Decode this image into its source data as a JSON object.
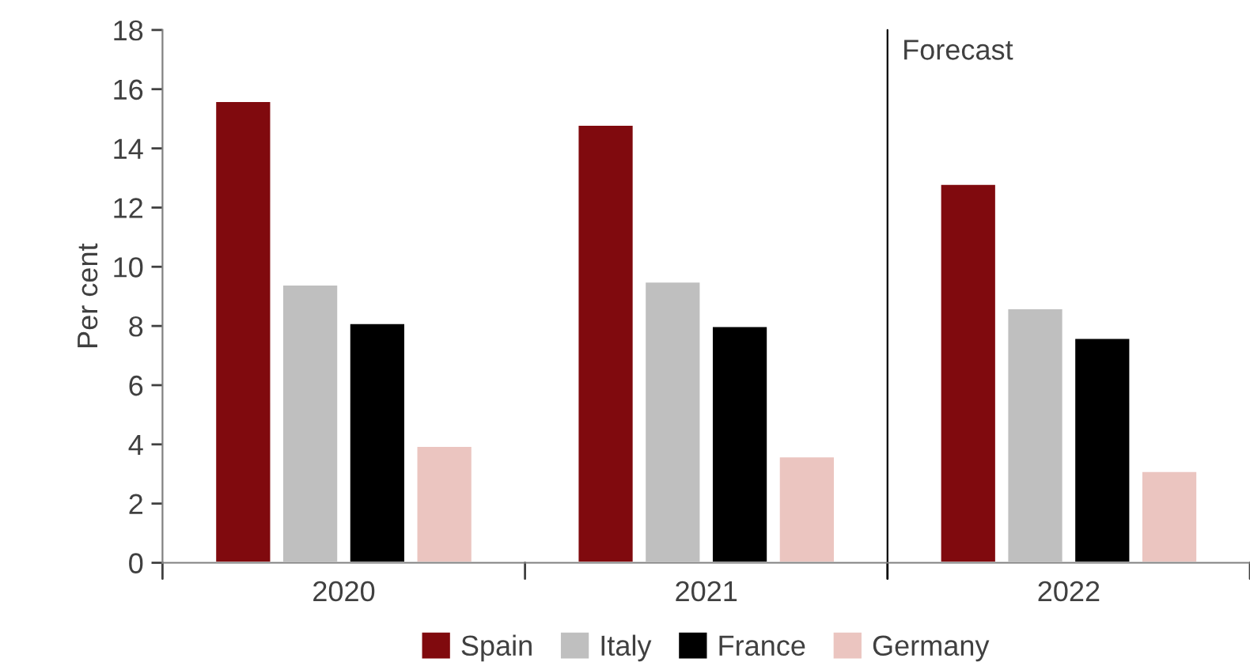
{
  "chart_data": {
    "type": "bar",
    "ylabel": "Per cent",
    "categories": [
      "2020",
      "2021",
      "2022"
    ],
    "series": [
      {
        "name": "Spain",
        "color": "#800a0e",
        "values": [
          15.6,
          14.8,
          12.8
        ]
      },
      {
        "name": "Italy",
        "color": "#bfbfbf",
        "values": [
          9.4,
          9.5,
          8.6
        ]
      },
      {
        "name": "France",
        "color": "#000000",
        "values": [
          8.1,
          8.0,
          7.6
        ]
      },
      {
        "name": "Germany",
        "color": "#ebc5c0",
        "values": [
          3.95,
          3.6,
          3.1
        ]
      }
    ],
    "ylim": [
      0,
      18
    ],
    "yticks": [
      0,
      2,
      4,
      6,
      8,
      10,
      12,
      14,
      16,
      18
    ],
    "annotations": [
      "Forecast"
    ],
    "grid": false,
    "legend": "bottom"
  }
}
